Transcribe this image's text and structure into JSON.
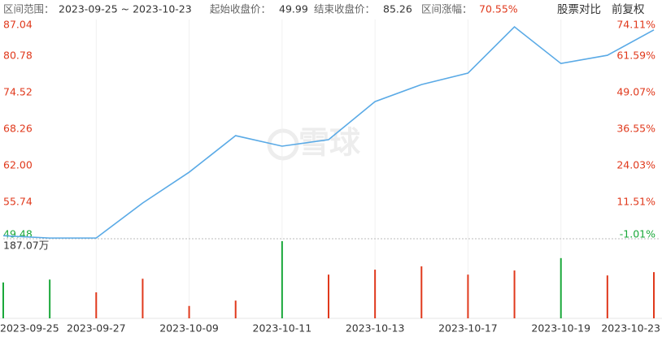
{
  "header": {
    "range_label": "区间范围：",
    "range": "2023-09-25 ~ 2023-10-23",
    "start_label": "起始收盘价：",
    "start": "49.99",
    "end_label": "结束收盘价：",
    "end": "85.26",
    "change_label": "区间涨幅：",
    "change": "70.55%",
    "compare": "股票对比",
    "adjust": "前复权"
  },
  "chart_data": {
    "type": "line",
    "watermark": "雪球",
    "color": "#5aaae6",
    "up_color": "#e0391c",
    "down_color": "#1aa83a",
    "categories": [
      "2023-09-25",
      null,
      "2023-09-27",
      null,
      "2023-10-09",
      null,
      "2023-10-11",
      null,
      "2023-10-13",
      null,
      "2023-10-17",
      null,
      "2023-10-19",
      null,
      "2023-10-23"
    ],
    "values": [
      49.99,
      49.6,
      49.6,
      55.6,
      60.88,
      67.14,
      65.34,
      66.45,
      72.98,
      75.9,
      77.85,
      85.78,
      79.5,
      80.91,
      85.26
    ],
    "ylim": [
      49.48,
      87.04
    ],
    "yticks": [
      87.04,
      80.78,
      74.52,
      68.26,
      {
        "value": 62,
        "label": "62.00"
      },
      55.74,
      49.48
    ],
    "y2lim": [
      -1.01,
      74.11
    ],
    "y2ticks": [
      {
        "value": 74.11,
        "label": "74.11%"
      },
      {
        "value": 61.59,
        "label": "61.59%"
      },
      {
        "value": 49.07,
        "label": "49.07%"
      },
      {
        "value": 36.55,
        "label": "36.55%"
      },
      {
        "value": 24.03,
        "label": "24.03%"
      },
      {
        "value": 11.51,
        "label": "11.51%"
      },
      {
        "value": -1.01,
        "label": "-1.01%"
      }
    ],
    "volume": {
      "values": [
        87,
        94,
        63,
        96,
        30,
        43,
        187.07,
        106,
        118,
        126,
        106,
        116,
        146,
        104,
        112
      ],
      "colors": [
        "#1aa83a",
        "#1aa83a",
        "#e0391c",
        "#e0391c",
        "#e0391c",
        "#e0391c",
        "#1aa83a",
        "#e0391c",
        "#e0391c",
        "#e0391c",
        "#e0391c",
        "#e0391c",
        "#1aa83a",
        "#e0391c",
        "#e0391c"
      ],
      "ylim": [
        0,
        187.07
      ],
      "yticks": [
        {
          "value": 187.07,
          "label": "187.07万"
        }
      ]
    }
  }
}
